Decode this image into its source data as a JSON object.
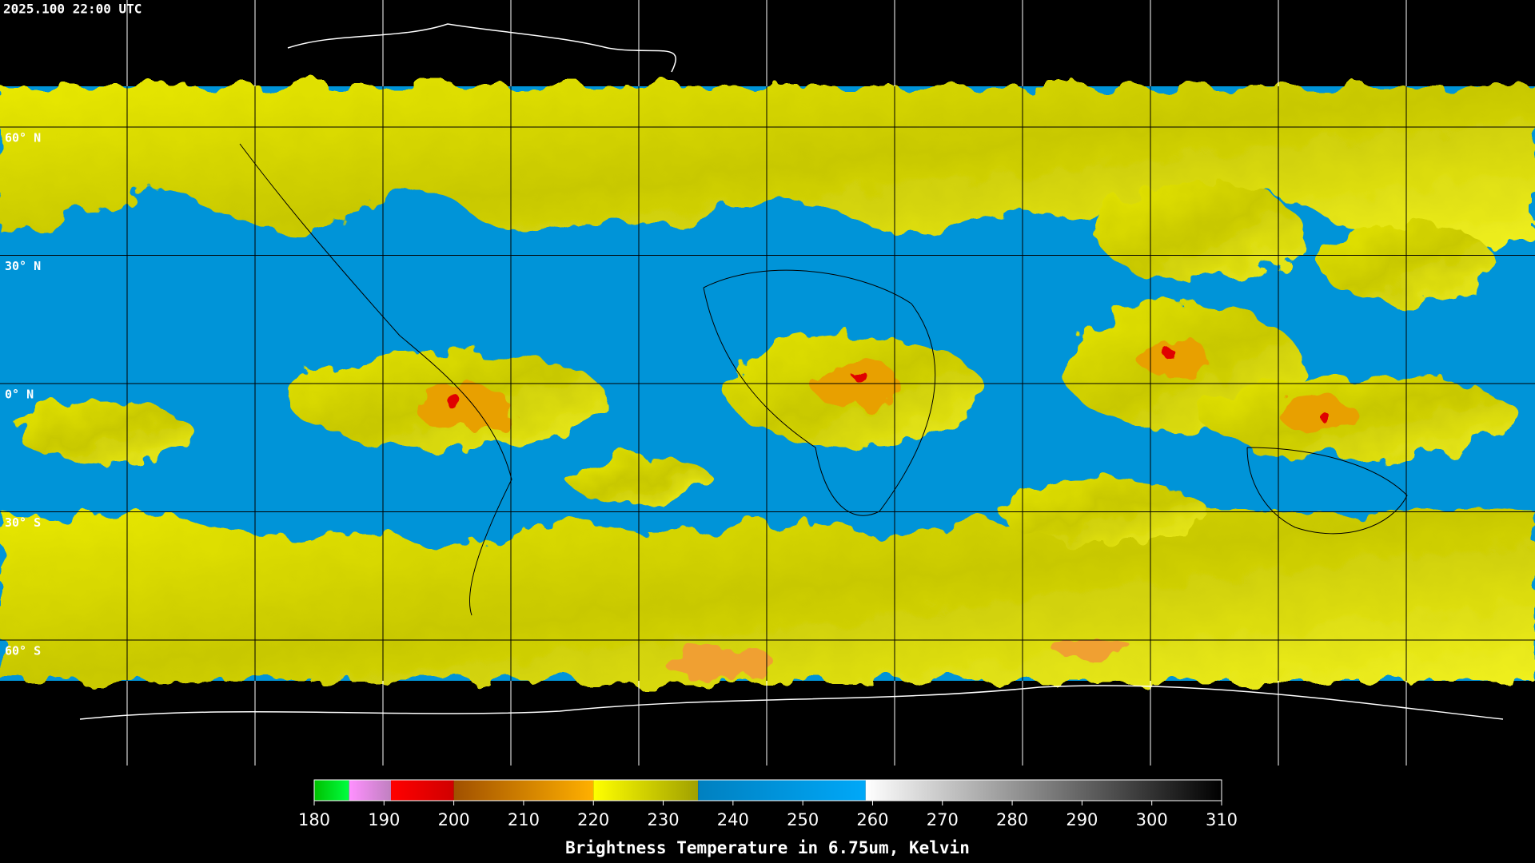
{
  "header": {
    "title": "2025.100 22:00 UTC"
  },
  "grid": {
    "latitudes": [
      {
        "value": 60,
        "label": "60° N"
      },
      {
        "value": 30,
        "label": "30° N"
      },
      {
        "value": 0,
        "label": "0° N"
      },
      {
        "value": -30,
        "label": "30° S"
      },
      {
        "value": -60,
        "label": "60° S"
      }
    ]
  },
  "colorbar": {
    "label": "Brightness Temperature in 6.75um, Kelvin",
    "range": [
      180,
      310
    ],
    "ticks": [
      180,
      190,
      200,
      210,
      220,
      230,
      240,
      250,
      260,
      270,
      280,
      290,
      300,
      310
    ],
    "segments": [
      {
        "from": 180,
        "to": 185,
        "colors": [
          "#00c000",
          "#00ff40"
        ]
      },
      {
        "from": 185,
        "to": 191,
        "colors": [
          "#ff90ff",
          "#c080c0"
        ]
      },
      {
        "from": 191,
        "to": 200,
        "colors": [
          "#ff0000",
          "#d00000"
        ]
      },
      {
        "from": 200,
        "to": 220,
        "colors": [
          "#a05000",
          "#ffb000"
        ]
      },
      {
        "from": 220,
        "to": 235,
        "colors": [
          "#ffff00",
          "#a0a000"
        ]
      },
      {
        "from": 235,
        "to": 259,
        "colors": [
          "#0080c0",
          "#00a8f8"
        ]
      },
      {
        "from": 259,
        "to": 310,
        "colors": [
          "#ffffff",
          "#000000"
        ]
      }
    ]
  }
}
